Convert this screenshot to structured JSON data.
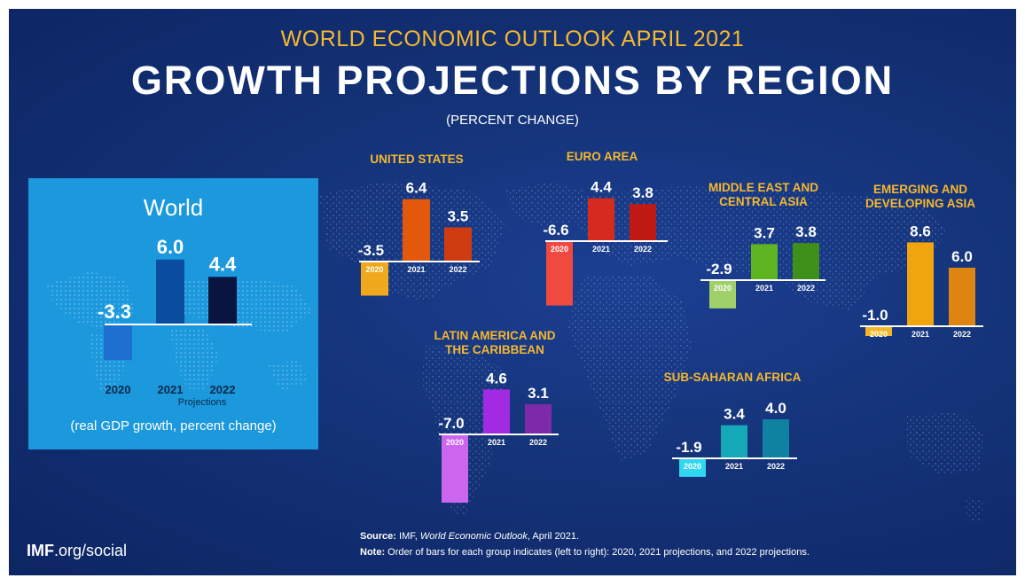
{
  "header": {
    "supertitle": "WORLD ECONOMIC OUTLOOK APRIL 2021",
    "title": "GROWTH PROJECTIONS BY REGION",
    "subtitle": "(PERCENT CHANGE)"
  },
  "world_panel": {
    "title": "World",
    "projections_label": "Projections",
    "note": "(real GDP growth, percent change)"
  },
  "footer": {
    "logo_bold": "IMF",
    "logo_rest": ".org/social",
    "source_label": "Source:",
    "source_pre": "IMF,",
    "source_italic": "World Economic Outlook",
    "source_post": ", April 2021.",
    "note_label": "Note:",
    "note_text": "Order of bars for each group indicates (left to right): 2020, 2021 projections, and 2022 projections."
  },
  "colors": {
    "background": "#143378",
    "world_panel": "#1c98dd",
    "title_gold": "#f5b82e",
    "region_label": "#f5b82e"
  },
  "chart_data": [
    {
      "type": "bar",
      "id": "world",
      "title": "World",
      "categories": [
        "2020",
        "2021",
        "2022"
      ],
      "values": [
        -3.3,
        6.0,
        4.4
      ],
      "value_labels": [
        "-3.3",
        "6.0",
        "4.4"
      ],
      "colors": [
        "#1f6fd1",
        "#0a4c9e",
        "#0a1440"
      ]
    },
    {
      "type": "bar",
      "id": "united-states",
      "title": "UNITED STATES",
      "categories": [
        "2020",
        "2021",
        "2022"
      ],
      "values": [
        -3.5,
        6.4,
        3.5
      ],
      "value_labels": [
        "-3.5",
        "6.4",
        "3.5"
      ],
      "colors": [
        "#f0a81c",
        "#e3580d",
        "#cf3c12"
      ]
    },
    {
      "type": "bar",
      "id": "euro-area",
      "title": "EURO AREA",
      "categories": [
        "2020",
        "2021",
        "2022"
      ],
      "values": [
        -6.6,
        4.4,
        3.8
      ],
      "value_labels": [
        "-6.6",
        "4.4",
        "3.8"
      ],
      "colors": [
        "#f04a40",
        "#d72a1e",
        "#bf1b14"
      ]
    },
    {
      "type": "bar",
      "id": "middle-east",
      "title": [
        "MIDDLE EAST AND",
        "CENTRAL ASIA"
      ],
      "categories": [
        "2020",
        "2021",
        "2022"
      ],
      "values": [
        -2.9,
        3.7,
        3.8
      ],
      "value_labels": [
        "-2.9",
        "3.7",
        "3.8"
      ],
      "colors": [
        "#9fd06a",
        "#5eb421",
        "#3f8f1b"
      ]
    },
    {
      "type": "bar",
      "id": "emerging-asia",
      "title": [
        "EMERGING AND",
        "DEVELOPING ASIA"
      ],
      "categories": [
        "2020",
        "2021",
        "2022"
      ],
      "values": [
        -1.0,
        8.6,
        6.0
      ],
      "value_labels": [
        "-1.0",
        "8.6",
        "6.0"
      ],
      "colors": [
        "#f3b62a",
        "#f0a40e",
        "#de8410"
      ]
    },
    {
      "type": "bar",
      "id": "latin-america",
      "title": [
        "LATIN AMERICA AND",
        "THE CARIBBEAN"
      ],
      "categories": [
        "2020",
        "2021",
        "2022"
      ],
      "values": [
        -7.0,
        4.6,
        3.1
      ],
      "value_labels": [
        "-7.0",
        "4.6",
        "3.1"
      ],
      "colors": [
        "#cc66ee",
        "#a22ae3",
        "#7c2aa8"
      ]
    },
    {
      "type": "bar",
      "id": "sub-saharan-africa",
      "title": "SUB-SAHARAN AFRICA",
      "categories": [
        "2020",
        "2021",
        "2022"
      ],
      "values": [
        -1.9,
        3.4,
        4.0
      ],
      "value_labels": [
        "-1.9",
        "3.4",
        "4.0"
      ],
      "colors": [
        "#2fd6ee",
        "#14a8b8",
        "#0f82a2"
      ]
    }
  ]
}
